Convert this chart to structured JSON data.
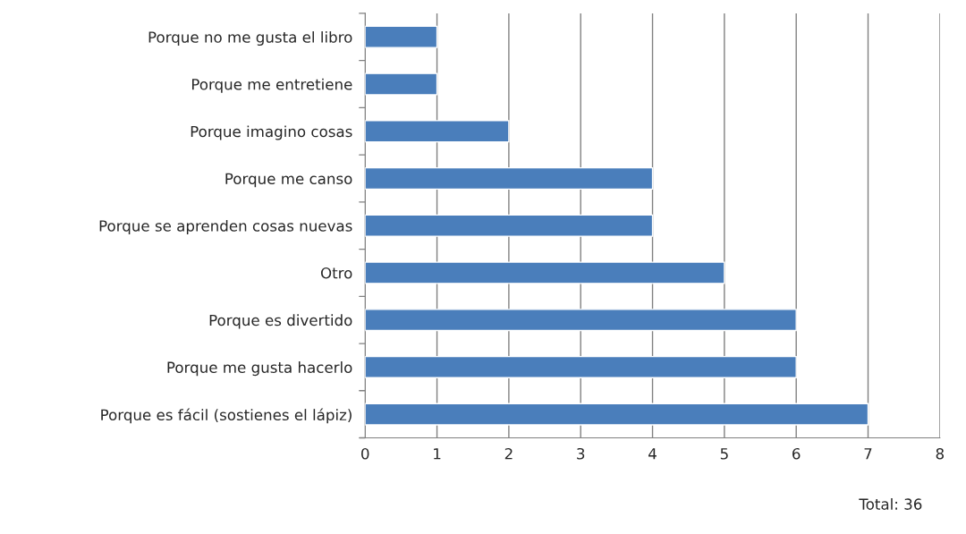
{
  "chart_data": {
    "type": "bar",
    "orientation": "horizontal",
    "categories": [
      "Porque no me gusta el libro",
      "Porque me entretiene",
      "Porque imagino cosas",
      "Porque me canso",
      "Porque se aprenden cosas nuevas",
      "Otro",
      "Porque es divertido",
      "Porque me gusta hacerlo",
      "Porque es fácil (sostienes el lápiz)"
    ],
    "values": [
      1,
      1,
      2,
      4,
      4,
      5,
      6,
      6,
      7
    ],
    "color": "#4a7ebb",
    "xlim": [
      0,
      8
    ],
    "xticks": [
      0,
      1,
      2,
      3,
      4,
      5,
      6,
      7,
      8
    ],
    "grid": "x",
    "annotations": [
      "Total: 36"
    ]
  }
}
